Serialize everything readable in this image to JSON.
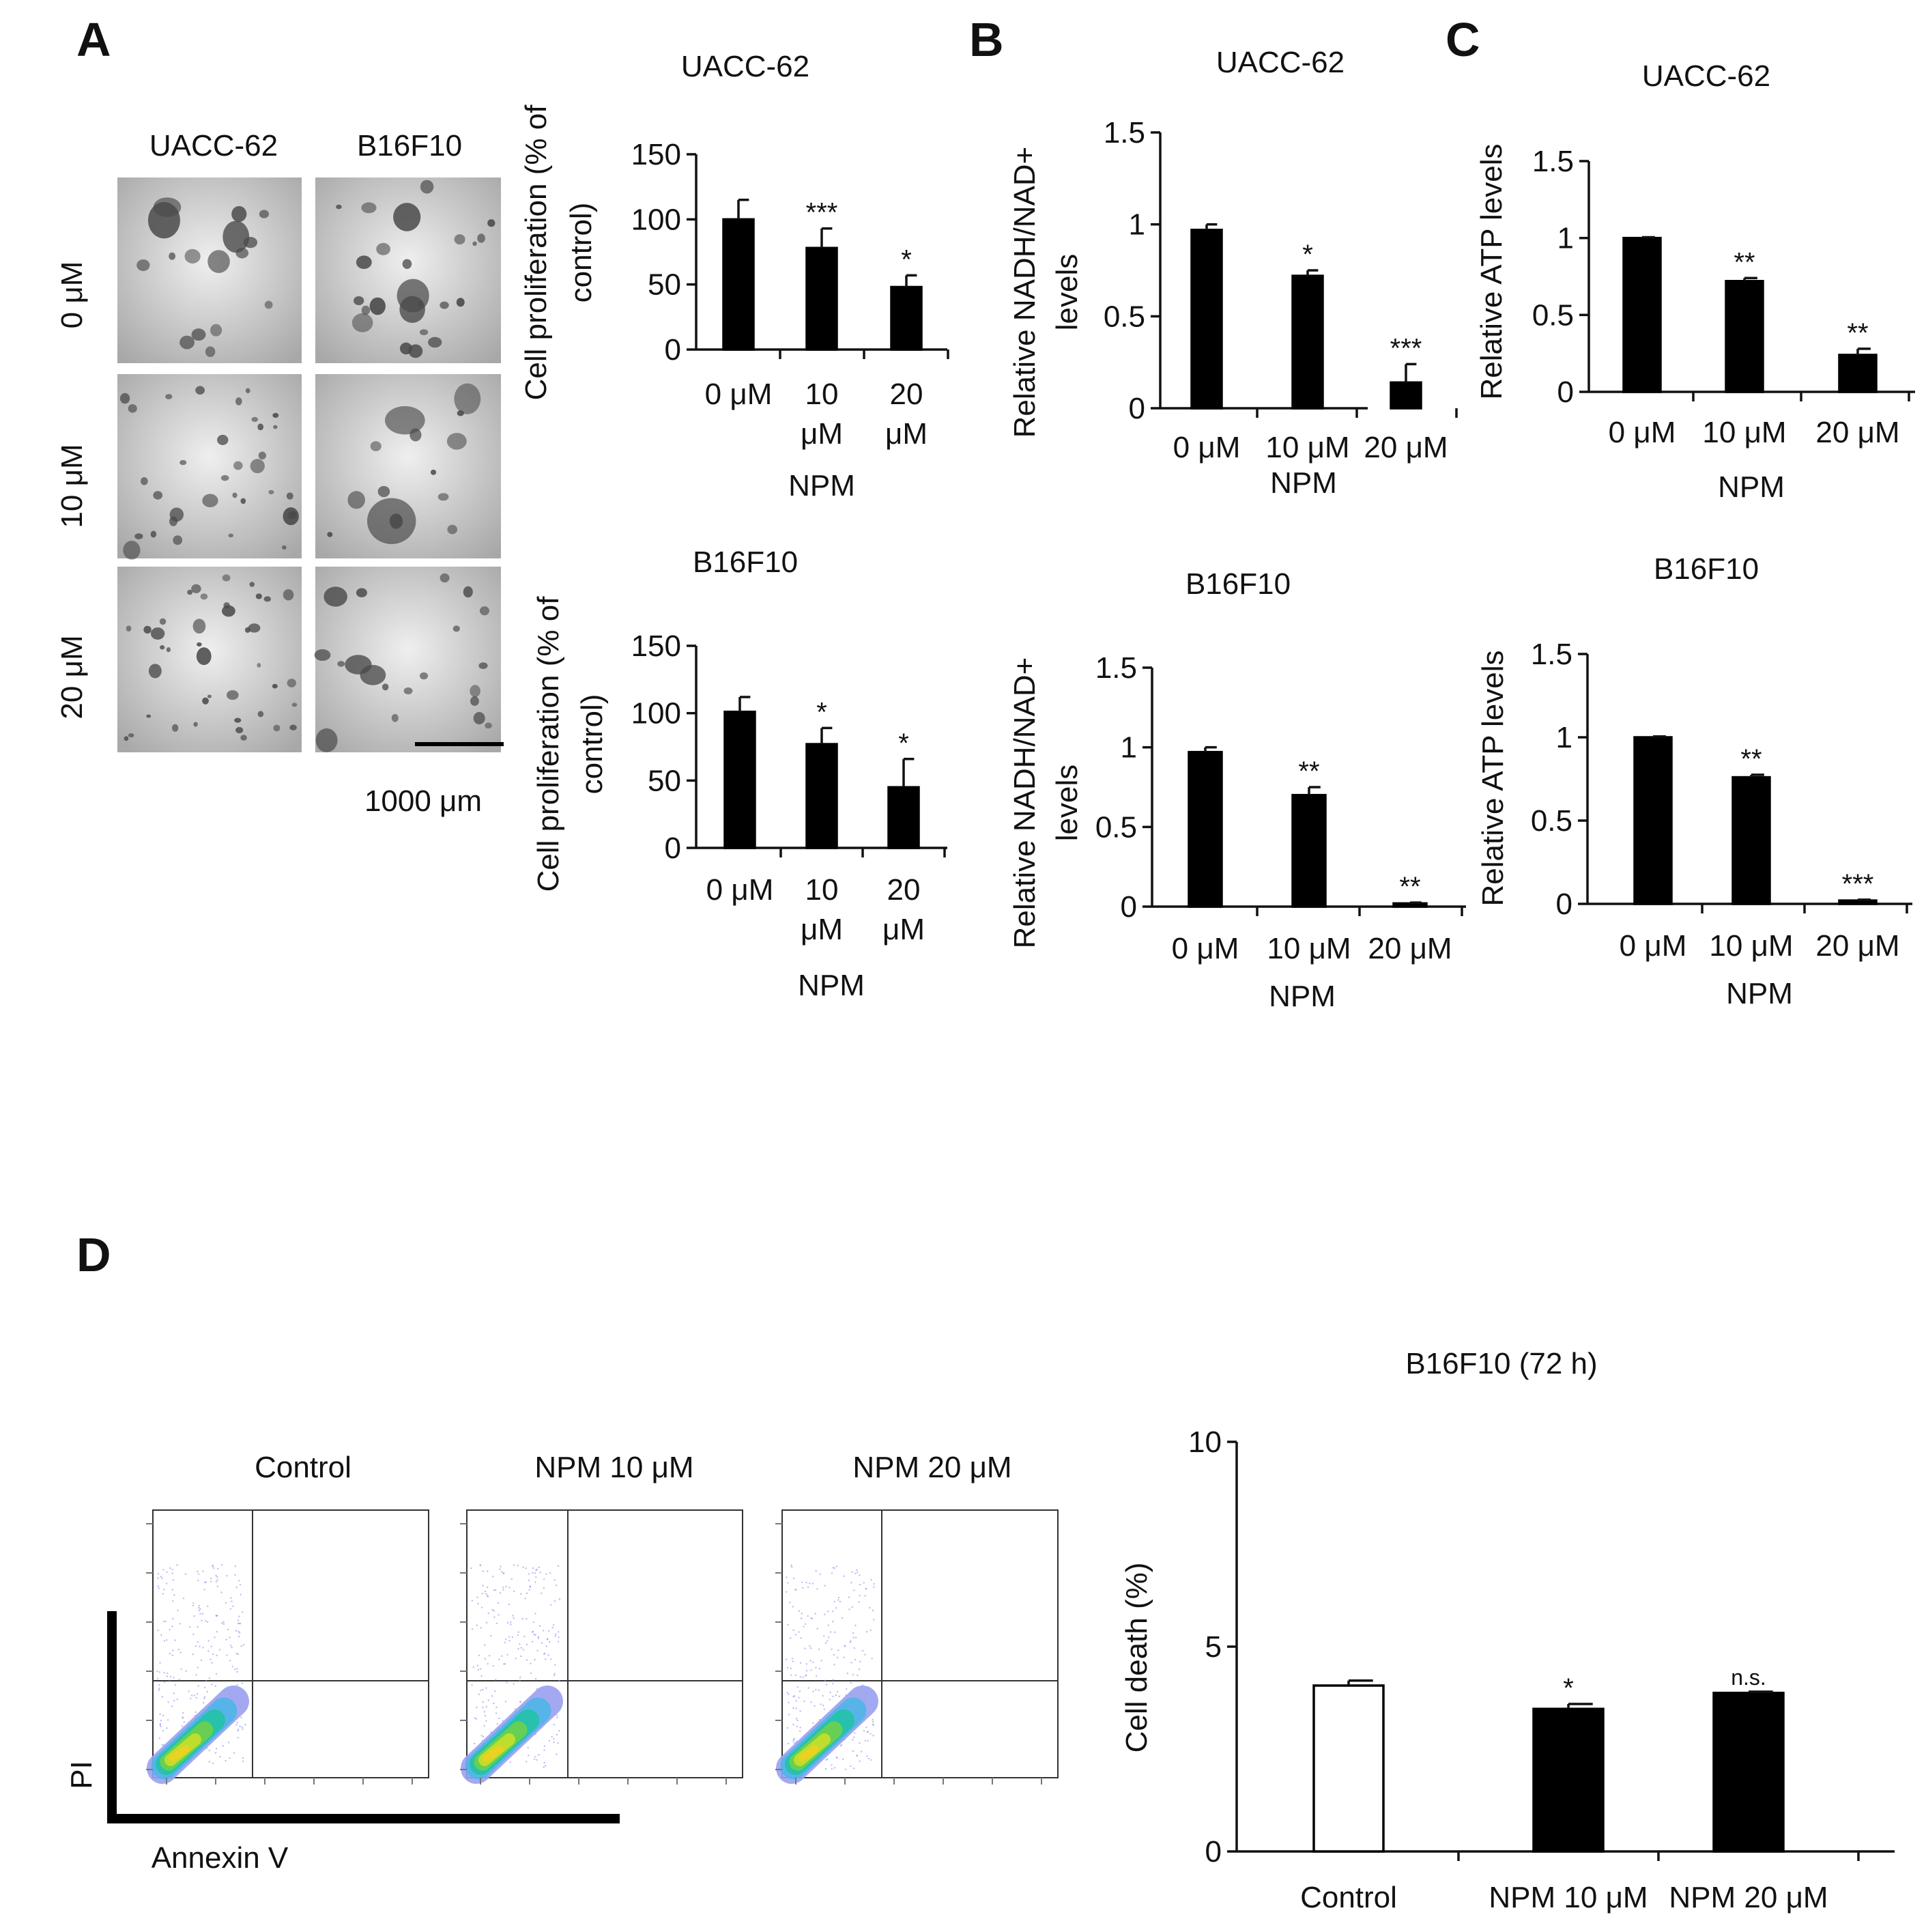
{
  "panels": {
    "A": "A",
    "B": "B",
    "C": "C",
    "D": "D"
  },
  "micrographs": {
    "columns": [
      "UACC-62",
      "B16F10"
    ],
    "rows": [
      "0 μM",
      "10 μM",
      "20 μM"
    ],
    "scale_bar": "1000 μm"
  },
  "flow": {
    "panels": [
      "Control",
      "NPM   10 μM",
      "NPM   20 μM"
    ],
    "x_axis": "Annexin V",
    "y_axis": "PI"
  },
  "chart_data": [
    {
      "id": "A1",
      "type": "bar",
      "title": "UACC-62",
      "xlabel": "NPM",
      "ylabel": [
        "Cell proliferation (% of",
        "control)"
      ],
      "categories": [
        [
          "0 μM"
        ],
        [
          "10",
          "μM"
        ],
        [
          "20",
          "μM"
        ]
      ],
      "values": [
        100,
        78,
        48
      ],
      "errors": [
        15,
        15,
        9
      ],
      "significance": [
        "",
        "***",
        "*"
      ],
      "yticks": [
        "0",
        "50",
        "100",
        "150"
      ],
      "ylim": [
        0,
        150
      ],
      "grid": false
    },
    {
      "id": "A2",
      "type": "bar",
      "title": "B16F10",
      "xlabel": "NPM",
      "ylabel": [
        "Cell proliferation (% of",
        "control)"
      ],
      "categories": [
        [
          "0 μM"
        ],
        [
          "10",
          "μM"
        ],
        [
          "20",
          "μM"
        ]
      ],
      "values": [
        101,
        77,
        45
      ],
      "errors": [
        11,
        12,
        21
      ],
      "significance": [
        "",
        "*",
        "*"
      ],
      "yticks": [
        "0",
        "50",
        "100",
        "150"
      ],
      "ylim": [
        0,
        150
      ],
      "grid": false
    },
    {
      "id": "B1",
      "type": "bar",
      "title": "UACC-62",
      "xlabel": "NPM",
      "ylabel": [
        "Relative NADH/NAD+",
        "levels"
      ],
      "categories": [
        [
          "0 μM"
        ],
        [
          "10 μM"
        ],
        [
          "20 μM"
        ]
      ],
      "values": [
        0.97,
        0.72,
        0.14
      ],
      "errors": [
        0.03,
        0.03,
        0.1
      ],
      "significance": [
        "",
        "*",
        "***"
      ],
      "yticks": [
        "0",
        "0.5",
        "1",
        "1.5"
      ],
      "ylim": [
        0,
        1.5
      ],
      "grid": false
    },
    {
      "id": "B2",
      "type": "bar",
      "title": "B16F10",
      "xlabel": "NPM",
      "ylabel": [
        "Relative NADH/NAD+",
        "levels"
      ],
      "categories": [
        [
          "0 μM"
        ],
        [
          "10 μM"
        ],
        [
          "20 μM"
        ]
      ],
      "values": [
        0.97,
        0.7,
        0.02
      ],
      "errors": [
        0.03,
        0.05,
        0.005
      ],
      "significance": [
        "",
        "**",
        "**"
      ],
      "yticks": [
        "0",
        "0.5",
        "1",
        "1.5"
      ],
      "ylim": [
        0,
        1.5
      ],
      "grid": false
    },
    {
      "id": "C1",
      "type": "bar",
      "title": "UACC-62",
      "xlabel": "NPM",
      "ylabel": [
        "Relative ATP levels"
      ],
      "categories": [
        [
          "0 μM"
        ],
        [
          "10 μM"
        ],
        [
          "20 μM"
        ]
      ],
      "values": [
        1.0,
        0.72,
        0.24
      ],
      "errors": [
        0.005,
        0.02,
        0.04
      ],
      "significance": [
        "",
        "**",
        "**"
      ],
      "yticks": [
        "0",
        "0.5",
        "1",
        "1.5"
      ],
      "ylim": [
        0,
        1.5
      ],
      "grid": false
    },
    {
      "id": "C2",
      "type": "bar",
      "title": "B16F10",
      "xlabel": "NPM",
      "ylabel": [
        "Relative ATP levels"
      ],
      "categories": [
        [
          "0 μM"
        ],
        [
          "10 μM"
        ],
        [
          "20 μM"
        ]
      ],
      "values": [
        1.0,
        0.76,
        0.02
      ],
      "errors": [
        0.005,
        0.015,
        0.005
      ],
      "significance": [
        "",
        "**",
        "***"
      ],
      "yticks": [
        "0",
        "0.5",
        "1",
        "1.5"
      ],
      "ylim": [
        0,
        1.5
      ],
      "grid": false
    },
    {
      "id": "D1",
      "type": "bar",
      "title": "B16F10 (72 h)",
      "xlabel": "",
      "ylabel": [
        "Cell death (%)"
      ],
      "categories": [
        [
          "Control"
        ],
        [
          "NPM  10 μM"
        ],
        [
          "NPM  20 μM"
        ]
      ],
      "values": [
        4.05,
        3.48,
        3.87
      ],
      "errors": [
        0.12,
        0.12,
        0.03
      ],
      "fills": [
        "#ffffff",
        "#000000",
        "#000000"
      ],
      "significance": [
        "",
        "*",
        "n.s."
      ],
      "yticks": [
        "0",
        "5",
        "10"
      ],
      "ylim": [
        0,
        10
      ],
      "grid": false
    }
  ]
}
